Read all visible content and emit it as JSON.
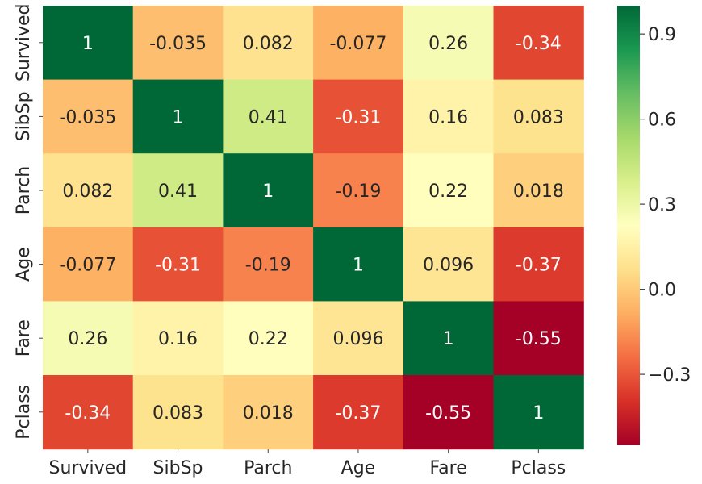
{
  "chart_data": {
    "type": "heatmap",
    "title": "",
    "x_labels": [
      "Survived",
      "SibSp",
      "Parch",
      "Age",
      "Fare",
      "Pclass"
    ],
    "y_labels": [
      "Survived",
      "SibSp",
      "Parch",
      "Age",
      "Fare",
      "Pclass"
    ],
    "values": [
      [
        1,
        -0.035,
        0.082,
        -0.077,
        0.26,
        -0.34
      ],
      [
        -0.035,
        1,
        0.41,
        -0.31,
        0.16,
        0.083
      ],
      [
        0.082,
        0.41,
        1,
        -0.19,
        0.22,
        0.018
      ],
      [
        -0.077,
        -0.31,
        -0.19,
        1,
        0.096,
        -0.37
      ],
      [
        0.26,
        0.16,
        0.22,
        0.096,
        1,
        -0.55
      ],
      [
        -0.34,
        0.083,
        0.018,
        -0.37,
        -0.55,
        1
      ]
    ],
    "annotations": [
      [
        "1",
        "-0.035",
        "0.082",
        "-0.077",
        "0.26",
        "-0.34"
      ],
      [
        "-0.035",
        "1",
        "0.41",
        "-0.31",
        "0.16",
        "0.083"
      ],
      [
        "0.082",
        "0.41",
        "1",
        "-0.19",
        "0.22",
        "0.018"
      ],
      [
        "-0.077",
        "-0.31",
        "-0.19",
        "1",
        "0.096",
        "-0.37"
      ],
      [
        "0.26",
        "0.16",
        "0.22",
        "0.096",
        "1",
        "-0.55"
      ],
      [
        "-0.34",
        "0.083",
        "0.018",
        "-0.37",
        "-0.55",
        "1"
      ]
    ],
    "colormap": "RdYlGn",
    "vmin": -0.55,
    "vmax": 1,
    "colorbar_ticks": [
      0.9,
      0.6,
      0.3,
      0.0,
      -0.3
    ],
    "colorbar_tick_labels": [
      "0.9",
      "0.6",
      "0.3",
      "0.0",
      "−0.3"
    ],
    "grid": false,
    "legend": "colorbar-right"
  }
}
